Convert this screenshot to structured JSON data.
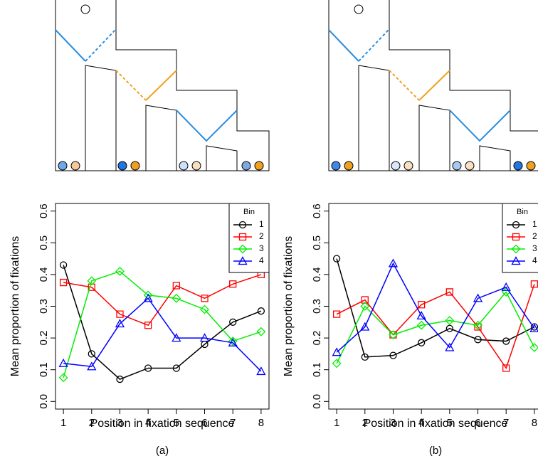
{
  "chart_data": [
    {
      "type": "line",
      "caption": "(a)",
      "x_label": "Position in fixation sequence",
      "y_label": "Mean proportion of fixations",
      "x": [
        1,
        2,
        3,
        4,
        5,
        6,
        7,
        8
      ],
      "xlim": [
        0.72,
        8.28
      ],
      "xticks": [
        1,
        2,
        3,
        4,
        5,
        6,
        7,
        8
      ],
      "ylim": [
        -0.024,
        0.624
      ],
      "yticks": [
        {
          "value": 0,
          "label": "0.0"
        },
        0.1,
        0.2,
        0.3,
        0.4,
        0.5,
        0.6
      ],
      "legend_title": "Bin",
      "legend": "top-right",
      "series": [
        {
          "name": "1",
          "color": "#000000",
          "marker": "circle",
          "values": [
            0.43,
            0.15,
            0.07,
            0.105,
            0.105,
            0.18,
            0.25,
            0.285
          ]
        },
        {
          "name": "2",
          "color": "#ff0000",
          "marker": "square",
          "values": [
            0.375,
            0.36,
            0.275,
            0.24,
            0.365,
            0.325,
            0.37,
            0.4
          ]
        },
        {
          "name": "3",
          "color": "#00ee00",
          "marker": "diamond",
          "values": [
            0.075,
            0.38,
            0.41,
            0.335,
            0.325,
            0.29,
            0.19,
            0.22
          ]
        },
        {
          "name": "4",
          "color": "#0000ff",
          "marker": "triangle",
          "values": [
            0.12,
            0.11,
            0.245,
            0.325,
            0.2,
            0.2,
            0.185,
            0.095
          ]
        }
      ]
    },
    {
      "type": "line",
      "caption": "(b)",
      "x_label": "Position in fixation sequence",
      "y_label": "Mean proportion of fixations",
      "x": [
        1,
        2,
        3,
        4,
        5,
        6,
        7,
        8
      ],
      "xlim": [
        0.72,
        8.28
      ],
      "xticks": [
        1,
        2,
        3,
        4,
        5,
        6,
        7,
        8
      ],
      "ylim": [
        -0.024,
        0.624
      ],
      "yticks": [
        {
          "value": 0,
          "label": "0.0"
        },
        0.1,
        0.2,
        0.3,
        0.4,
        0.5,
        0.6
      ],
      "legend_title": "Bin",
      "legend": "top-right",
      "series": [
        {
          "name": "1",
          "color": "#000000",
          "marker": "circle",
          "values": [
            0.45,
            0.14,
            0.145,
            0.185,
            0.23,
            0.195,
            0.19,
            0.235
          ]
        },
        {
          "name": "2",
          "color": "#ff0000",
          "marker": "square",
          "values": [
            0.275,
            0.32,
            0.21,
            0.305,
            0.345,
            0.235,
            0.105,
            0.37
          ]
        },
        {
          "name": "3",
          "color": "#00ee00",
          "marker": "diamond",
          "values": [
            0.12,
            0.3,
            0.21,
            0.24,
            0.255,
            0.24,
            0.345,
            0.17
          ]
        },
        {
          "name": "4",
          "color": "#0000ff",
          "marker": "triangle",
          "values": [
            0.155,
            0.235,
            0.435,
            0.27,
            0.17,
            0.325,
            0.36,
            0.23
          ]
        }
      ]
    }
  ]
}
